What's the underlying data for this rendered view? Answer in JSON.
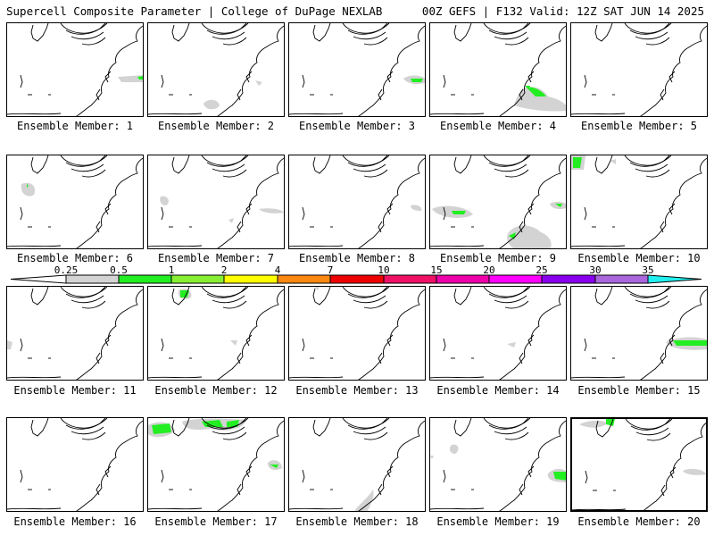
{
  "header": {
    "title_left": "Supercell Composite Parameter | College of DuPage NEXLAB",
    "title_right": "00Z GEFS | F132 Valid: 12Z SAT JUN 14 2025"
  },
  "legend": {
    "ticks": [
      "0.25",
      "0.5",
      "1",
      "2",
      "4",
      "7",
      "10",
      "15",
      "20",
      "25",
      "30",
      "35"
    ],
    "colors": [
      "#d3d3d3",
      "#22ee22",
      "#88ee33",
      "#ffff00",
      "#ff8811",
      "#ee0000",
      "#ee1166",
      "#ee00aa",
      "#ff00ff",
      "#8800ee",
      "#aa66dd",
      "#22eeee"
    ]
  },
  "members": [
    {
      "label": "Ensemble Member: 1"
    },
    {
      "label": "Ensemble Member: 2"
    },
    {
      "label": "Ensemble Member: 3"
    },
    {
      "label": "Ensemble Member: 4"
    },
    {
      "label": "Ensemble Member: 5"
    },
    {
      "label": "Ensemble Member: 6"
    },
    {
      "label": "Ensemble Member: 7"
    },
    {
      "label": "Ensemble Member: 8"
    },
    {
      "label": "Ensemble Member: 9"
    },
    {
      "label": "Ensemble Member: 10"
    },
    {
      "label": "Ensemble Member: 11"
    },
    {
      "label": "Ensemble Member: 12"
    },
    {
      "label": "Ensemble Member: 13"
    },
    {
      "label": "Ensemble Member: 14"
    },
    {
      "label": "Ensemble Member: 15"
    },
    {
      "label": "Ensemble Member: 16"
    },
    {
      "label": "Ensemble Member: 17"
    },
    {
      "label": "Ensemble Member: 18"
    },
    {
      "label": "Ensemble Member: 19"
    },
    {
      "label": "Ensemble Member: 20"
    }
  ]
}
